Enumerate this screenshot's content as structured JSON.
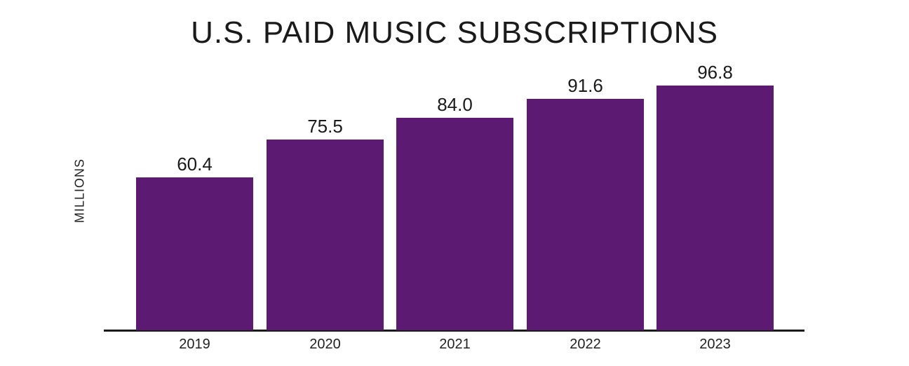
{
  "chart_data": {
    "type": "bar",
    "title": "U.S. PAID MUSIC SUBSCRIPTIONS",
    "xlabel": "",
    "ylabel": "MILLIONS",
    "categories": [
      "2019",
      "2020",
      "2021",
      "2022",
      "2023"
    ],
    "values": [
      60.4,
      75.5,
      84.0,
      91.6,
      96.8
    ],
    "value_labels": [
      "60.4",
      "75.5",
      "84.0",
      "91.6",
      "96.8"
    ],
    "bar_color": "#5c1a73",
    "grid": false,
    "legend": null,
    "ylim": [
      0,
      100
    ]
  }
}
